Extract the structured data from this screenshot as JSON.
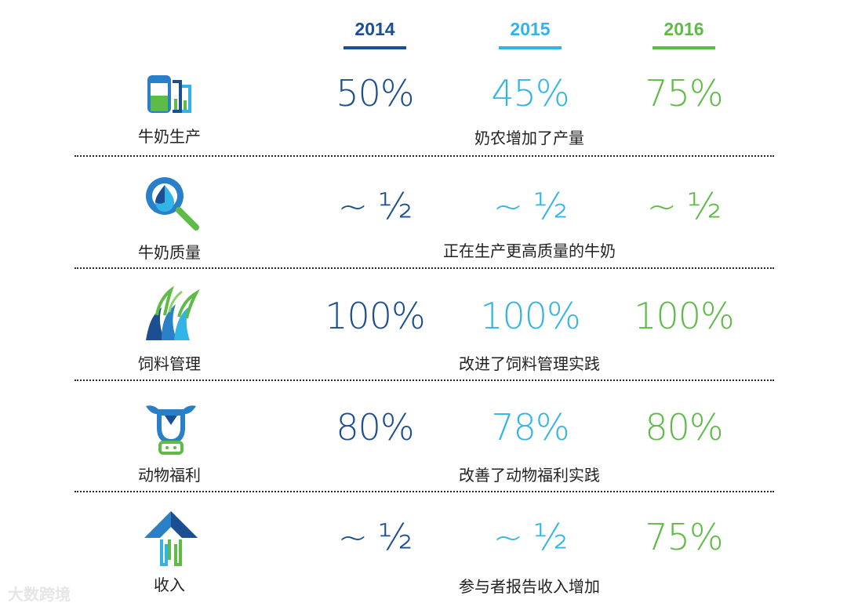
{
  "colors": {
    "y2014": "#1b4f91",
    "y2015": "#32b5e6",
    "y2016": "#5dbb46"
  },
  "years": [
    "2014",
    "2015",
    "2016"
  ],
  "watermark": "大数跨境",
  "chart_data": {
    "type": "table",
    "columns": [
      "2014",
      "2015",
      "2016"
    ],
    "rows": [
      {
        "category": "牛奶生产",
        "icon": "milk-carton-icon",
        "values": [
          "50%",
          "45%",
          "75%"
        ],
        "description": "奶农增加了产量"
      },
      {
        "category": "牛奶质量",
        "icon": "magnifier-drop-icon",
        "values": [
          "~ ½",
          "~ ½",
          "~ ½"
        ],
        "description": "正在生产更高质量的牛奶"
      },
      {
        "category": "饲料管理",
        "icon": "grass-icon",
        "values": [
          "100%",
          "100%",
          "100%"
        ],
        "description": "改进了饲料管理实践"
      },
      {
        "category": "动物福利",
        "icon": "cow-head-icon",
        "values": [
          "80%",
          "78%",
          "80%"
        ],
        "description": "改善了动物福利实践"
      },
      {
        "category": "收入",
        "icon": "up-arrow-icon",
        "values": [
          "~ ½",
          "~ ½",
          "75%"
        ],
        "description": "参与者报告收入增加"
      }
    ]
  }
}
